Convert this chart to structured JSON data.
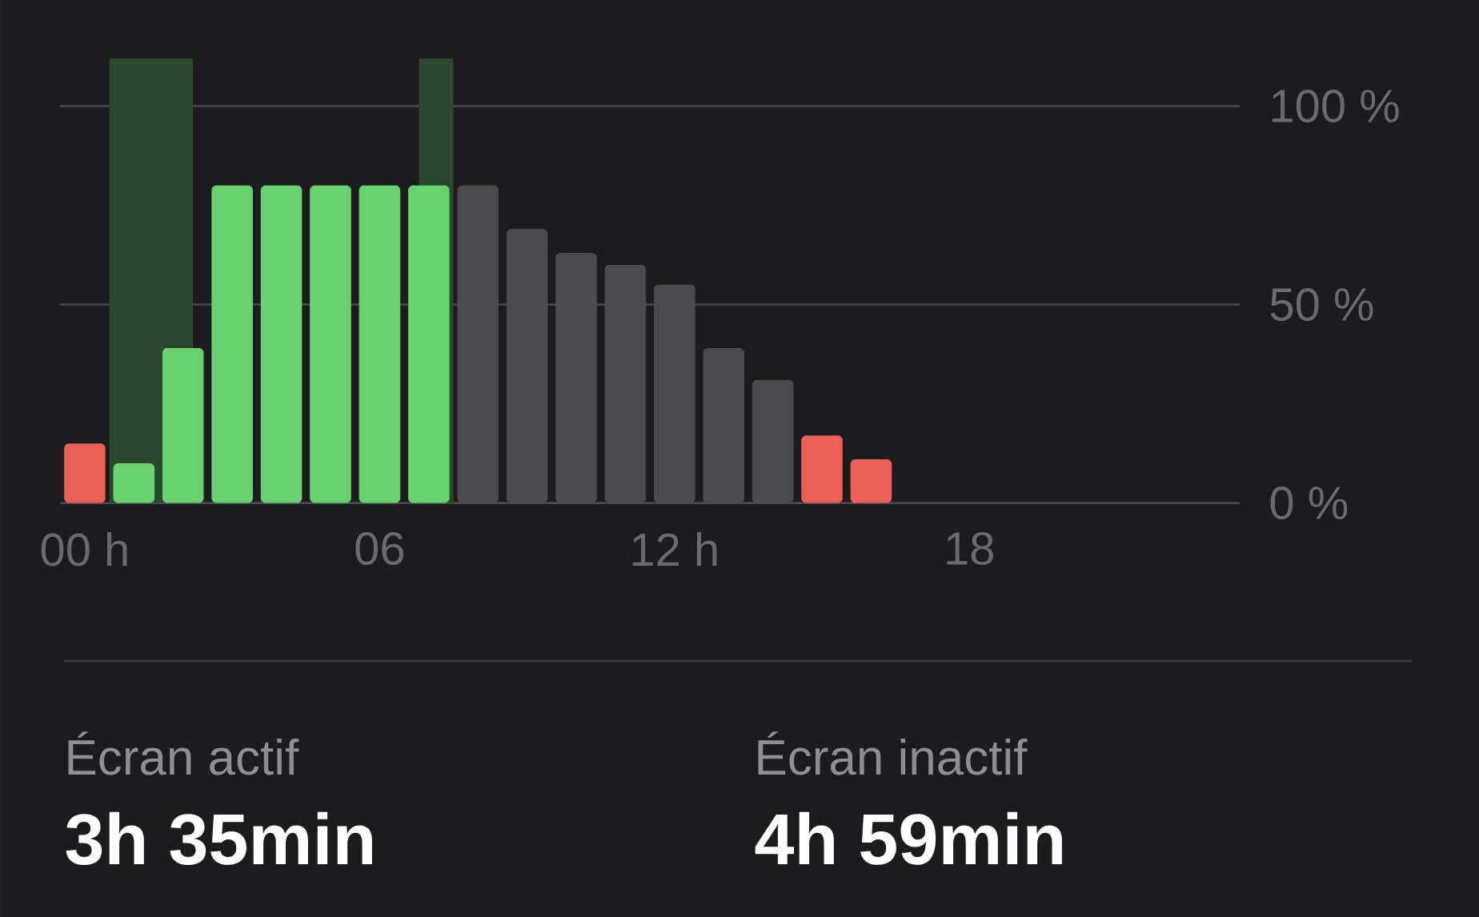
{
  "chart_data": {
    "type": "bar",
    "x": [
      0,
      1,
      2,
      3,
      4,
      5,
      6,
      7,
      8,
      9,
      10,
      11,
      12,
      13,
      14,
      15,
      16
    ],
    "values": [
      15,
      10,
      39,
      80,
      80,
      80,
      80,
      80,
      80,
      69,
      63,
      60,
      55,
      39,
      31,
      17,
      11
    ],
    "colors": [
      "#eb5f56",
      "#66d16e",
      "#66d16e",
      "#66d16e",
      "#66d16e",
      "#66d16e",
      "#66d16e",
      "#66d16e",
      "#4b4b4d",
      "#4b4b4d",
      "#4b4b4d",
      "#4b4b4d",
      "#4b4b4d",
      "#4b4b4d",
      "#4b4b4d",
      "#eb5f56",
      "#eb5f56"
    ],
    "xlim": [
      -0.5,
      23.5
    ],
    "xticks": [
      {
        "value": 0,
        "label": "00 h"
      },
      {
        "value": 6,
        "label": "06"
      },
      {
        "value": 12,
        "label": "12 h"
      },
      {
        "value": 18,
        "label": "18"
      }
    ],
    "ylim": [
      0,
      112
    ],
    "yticks": [
      {
        "value": 0,
        "label": "0 %"
      },
      {
        "value": 50,
        "label": "50 %"
      },
      {
        "value": 100,
        "label": "100 %"
      }
    ],
    "grid": "y",
    "bands": [
      {
        "axis": "x",
        "from": 0.5,
        "to": 2.2,
        "color": "#2b482e"
      },
      {
        "axis": "x",
        "from": 6.8,
        "to": 7.5,
        "color": "#2b482e"
      }
    ],
    "annotations": [
      "Écran actif",
      "3h 35min",
      "Écran inactif",
      "4h 59min"
    ]
  }
}
